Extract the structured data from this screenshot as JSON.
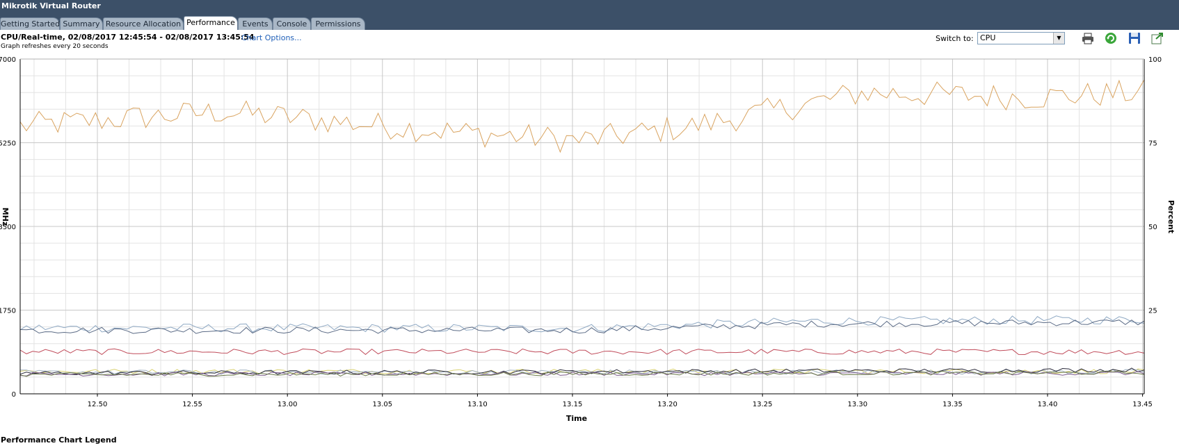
{
  "window": {
    "title": "Mikrotik Virtual Router"
  },
  "tabs": [
    {
      "label": "Getting Started",
      "active": false
    },
    {
      "label": "Summary",
      "active": false
    },
    {
      "label": "Resource Allocation",
      "active": false
    },
    {
      "label": "Performance",
      "active": true
    },
    {
      "label": "Events",
      "active": false
    },
    {
      "label": "Console",
      "active": false
    },
    {
      "label": "Permissions",
      "active": false
    }
  ],
  "header": {
    "chart_title": "CPU/Real-time, 02/08/2017 12:45:54 - 02/08/2017 13:45:54",
    "chart_options_link": "Chart Options...",
    "refresh_note": "Graph refreshes every 20 seconds"
  },
  "toolbar": {
    "switch_label": "Switch to:",
    "switch_value": "CPU",
    "icons": [
      "print-icon",
      "refresh-icon",
      "save-icon",
      "export-icon"
    ]
  },
  "legend": {
    "title": "Performance Chart Legend"
  },
  "chart_data": {
    "type": "line",
    "xlabel": "Time",
    "ylabel_left": "MHz",
    "ylabel_right": "Percent",
    "xlim": [
      12.4645,
      13.4605
    ],
    "xticks": [
      "12.50",
      "12.55",
      "13.00",
      "13.05",
      "13.10",
      "13.15",
      "13.20",
      "13.25",
      "13.30",
      "13.35",
      "13.40",
      "13.45"
    ],
    "xtick_values": [
      12.4645,
      12.5145,
      12.5645,
      12.6145,
      12.6645,
      12.7145,
      12.7645,
      12.8145,
      12.8645,
      12.9145,
      12.9645,
      13.0145
    ],
    "ylim_left": [
      0,
      7000
    ],
    "yticks_left": [
      "0",
      "1750",
      "3500",
      "5250",
      "7000"
    ],
    "ylim_right": [
      0,
      100
    ],
    "yticks_right": [
      "25",
      "50",
      "75",
      "100"
    ],
    "grid": true,
    "series": [
      {
        "color": "#d9a35f",
        "base": 5700,
        "trend": [
          [
            0,
            5600
          ],
          [
            0.18,
            5900
          ],
          [
            0.4,
            5450
          ],
          [
            0.5,
            5300
          ],
          [
            0.6,
            5600
          ],
          [
            0.75,
            6300
          ],
          [
            0.9,
            6200
          ],
          [
            1.0,
            6300
          ]
        ],
        "noise": 280
      },
      {
        "color": "#8ea8c3",
        "base": 1400,
        "trend": [
          [
            0,
            1380
          ],
          [
            0.5,
            1370
          ],
          [
            0.7,
            1520
          ],
          [
            1.0,
            1550
          ]
        ],
        "noise": 90
      },
      {
        "color": "#5a6a85",
        "base": 1350,
        "trend": [
          [
            0,
            1330
          ],
          [
            0.5,
            1330
          ],
          [
            0.7,
            1460
          ],
          [
            1.0,
            1500
          ]
        ],
        "noise": 70
      },
      {
        "color": "#c04b5a",
        "base": 880,
        "trend": [
          [
            0,
            880
          ],
          [
            1.0,
            880
          ]
        ],
        "noise": 60
      },
      {
        "color": "#d8d070",
        "base": 470,
        "trend": [
          [
            0,
            470
          ],
          [
            1.0,
            470
          ]
        ],
        "noise": 50
      },
      {
        "color": "#9fb0c0",
        "base": 440,
        "trend": [
          [
            0,
            450
          ],
          [
            1.0,
            460
          ]
        ],
        "noise": 50
      },
      {
        "color": "#2a2a3a",
        "base": 430,
        "trend": [
          [
            0,
            430
          ],
          [
            1.0,
            500
          ]
        ],
        "noise": 45
      },
      {
        "color": "#7a5a8a",
        "base": 410,
        "trend": [
          [
            0,
            410
          ],
          [
            1.0,
            430
          ]
        ],
        "noise": 40
      },
      {
        "color": "#6b7a4a",
        "base": 400,
        "trend": [
          [
            0,
            400
          ],
          [
            1.0,
            440
          ]
        ],
        "noise": 40
      }
    ]
  }
}
